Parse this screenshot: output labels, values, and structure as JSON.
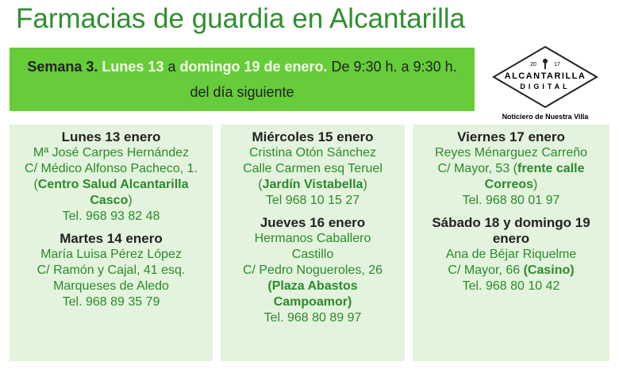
{
  "title": "Farmacias de guardia en Alcantarilla",
  "banner": {
    "segments": [
      {
        "text": "Semana 3. ",
        "style": "dark-bold"
      },
      {
        "text": "Lunes 13",
        "style": "light-bold"
      },
      {
        "text": " a ",
        "style": "dark"
      },
      {
        "text": "domingo 19 de enero.",
        "style": "light-bold"
      },
      {
        "text": " De  9:30 h. a 9:30 h. del día siguiente",
        "style": "dark"
      }
    ]
  },
  "logo": {
    "year_left": "20",
    "year_right": "17",
    "name": "ALCANTARILLA",
    "sub": "DIGITAL",
    "tagline": "Noticiero de Nuestra Villa"
  },
  "columns": [
    {
      "entries": [
        {
          "heading": "Lunes 13 enero",
          "paragraphs": [
            [
              {
                "text": "Mª José Carpes Hernández"
              }
            ],
            [
              {
                "text": "C/ Médico Alfonso Pacheco, 1."
              }
            ],
            [
              {
                "text": "("
              },
              {
                "text": "Centro Salud Alcantarilla Casco",
                "accent": true
              },
              {
                "text": ")"
              }
            ],
            [
              {
                "text": "Tel. 968 93 82 48"
              }
            ]
          ]
        },
        {
          "heading": "Martes 14 enero",
          "paragraphs": [
            [
              {
                "text": "María Luisa Pérez López"
              }
            ],
            [
              {
                "text": "C/ Ramón y Cajal, 41 esq. Marqueses de Aledo"
              }
            ],
            [
              {
                "text": "Tel. 968 89 35 79"
              }
            ]
          ]
        }
      ]
    },
    {
      "entries": [
        {
          "heading": "Miércoles 15 enero",
          "paragraphs": [
            [
              {
                "text": "Cristina Otón Sánchez"
              }
            ],
            [
              {
                "text": "Calle Carmen esq Teruel"
              }
            ],
            [
              {
                "text": "("
              },
              {
                "text": "Jardín Vistabella",
                "accent": true
              },
              {
                "text": ")"
              }
            ],
            [
              {
                "text": "Tel 968 10 15 27"
              }
            ]
          ]
        },
        {
          "heading": "Jueves 16 enero",
          "paragraphs": [
            [
              {
                "text": "Hermanos Caballero Castillo"
              }
            ],
            [
              {
                "text": "C/ Pedro Nogueroles, 26"
              }
            ],
            [
              {
                "text": "(Plaza Abastos Campoamor)",
                "accent": true
              }
            ],
            [
              {
                "text": "Tel. 968 80 89 97"
              }
            ]
          ]
        }
      ]
    },
    {
      "entries": [
        {
          "heading": "Viernes 17 enero",
          "paragraphs": [
            [
              {
                "text": "Reyes Ménarguez Carreño"
              }
            ],
            [
              {
                "text": "C/ Mayor, 53 ("
              },
              {
                "text": "frente calle Correos",
                "accent": true
              },
              {
                "text": ")"
              }
            ],
            [
              {
                "text": "Tel. 968 80 01 97"
              }
            ]
          ]
        },
        {
          "heading": "Sábado 18 y domingo 19 enero",
          "paragraphs": [
            [
              {
                "text": "Ana de Béjar Riquelme"
              }
            ],
            [
              {
                "text": "C/ Mayor, 66 "
              },
              {
                "text": "(Casino)",
                "accent": true
              }
            ],
            [
              {
                "text": "Tel. 968 80 10 42"
              }
            ]
          ]
        }
      ]
    }
  ]
}
